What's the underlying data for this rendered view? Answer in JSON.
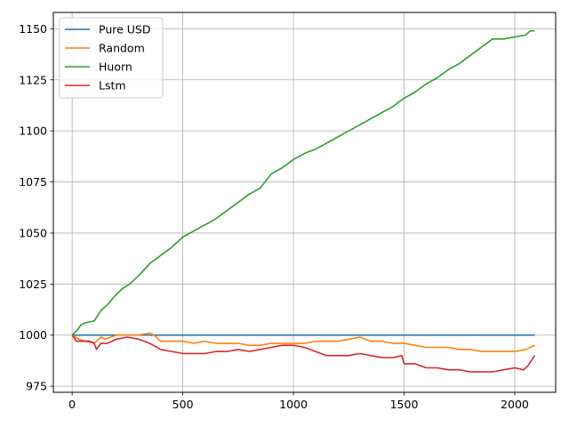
{
  "chart_data": {
    "type": "line",
    "title": "",
    "xlabel": "",
    "ylabel": "",
    "xlim": [
      -85,
      2185
    ],
    "ylim": [
      972,
      1158
    ],
    "xticks": [
      0,
      500,
      1000,
      1500,
      2000
    ],
    "yticks": [
      975,
      1000,
      1025,
      1050,
      1075,
      1100,
      1125,
      1150
    ],
    "grid": true,
    "legend_position": "top-left",
    "series": [
      {
        "name": "Pure USD",
        "color": "#1f77b4",
        "x": [
          0,
          2090
        ],
        "y": [
          1000,
          1000
        ]
      },
      {
        "name": "Random",
        "color": "#ff7f0e",
        "x": [
          0,
          30,
          60,
          100,
          130,
          150,
          200,
          250,
          300,
          350,
          370,
          400,
          450,
          500,
          550,
          600,
          650,
          700,
          750,
          800,
          850,
          900,
          950,
          1000,
          1050,
          1100,
          1150,
          1200,
          1250,
          1300,
          1350,
          1400,
          1450,
          1500,
          1550,
          1600,
          1650,
          1700,
          1750,
          1800,
          1850,
          1900,
          1950,
          2000,
          2050,
          2090
        ],
        "y": [
          1000,
          998,
          997,
          996,
          999,
          998,
          1000,
          1000,
          1000,
          1001,
          1000,
          997,
          997,
          997,
          996,
          997,
          996,
          996,
          996,
          995,
          995,
          996,
          996,
          996,
          996,
          997,
          997,
          997,
          998,
          999,
          997,
          997,
          996,
          996,
          995,
          994,
          994,
          994,
          993,
          993,
          992,
          992,
          992,
          992,
          993,
          995
        ]
      },
      {
        "name": "Huorn",
        "color": "#2ca02c",
        "x": [
          0,
          20,
          40,
          60,
          100,
          130,
          160,
          200,
          230,
          260,
          300,
          350,
          400,
          450,
          500,
          550,
          600,
          650,
          700,
          750,
          800,
          850,
          900,
          950,
          1000,
          1050,
          1100,
          1150,
          1200,
          1250,
          1300,
          1350,
          1400,
          1450,
          1500,
          1550,
          1600,
          1650,
          1700,
          1750,
          1800,
          1850,
          1900,
          1950,
          2000,
          2050,
          2070,
          2090
        ],
        "y": [
          1000,
          1002,
          1005,
          1006,
          1007,
          1012,
          1015,
          1020,
          1023,
          1025,
          1029,
          1035,
          1039,
          1043,
          1048,
          1051,
          1054,
          1057,
          1061,
          1065,
          1069,
          1072,
          1079,
          1082,
          1086,
          1089,
          1091,
          1094,
          1097,
          1100,
          1103,
          1106,
          1109,
          1112,
          1116,
          1119,
          1123,
          1126,
          1130,
          1133,
          1137,
          1141,
          1145,
          1145,
          1146,
          1147,
          1149,
          1149
        ]
      },
      {
        "name": "Lstm",
        "color": "#d62728",
        "x": [
          0,
          20,
          50,
          80,
          100,
          110,
          130,
          160,
          200,
          250,
          300,
          350,
          400,
          450,
          500,
          550,
          600,
          650,
          700,
          750,
          800,
          850,
          900,
          950,
          1000,
          1050,
          1100,
          1150,
          1200,
          1250,
          1300,
          1350,
          1400,
          1450,
          1490,
          1500,
          1550,
          1600,
          1650,
          1700,
          1750,
          1800,
          1850,
          1900,
          1950,
          2000,
          2040,
          2060,
          2090
        ],
        "y": [
          1000,
          997,
          997,
          997,
          996,
          993,
          996,
          996,
          998,
          999,
          998,
          996,
          993,
          992,
          991,
          991,
          991,
          992,
          992,
          993,
          992,
          993,
          994,
          995,
          995,
          994,
          992,
          990,
          990,
          990,
          991,
          990,
          989,
          989,
          990,
          986,
          986,
          984,
          984,
          983,
          983,
          982,
          982,
          982,
          983,
          984,
          983,
          985,
          990
        ]
      }
    ]
  }
}
